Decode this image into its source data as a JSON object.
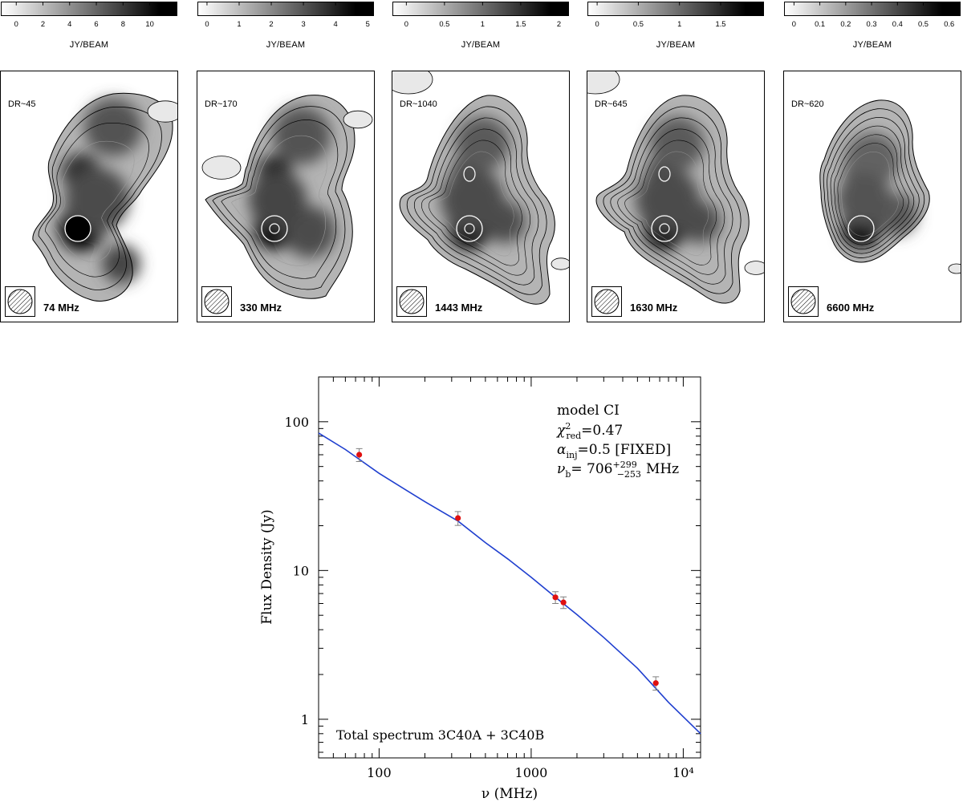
{
  "colors": {
    "fit": "#1f3fcf",
    "points": "#e01010",
    "errorbar": "#808080"
  },
  "panels": [
    {
      "freq": "74 MHz",
      "dr": "DR~45",
      "cbar_label": "JY/BEAM",
      "ticks": [
        "0",
        "2",
        "4",
        "6",
        "8",
        "10"
      ],
      "tick_values": [
        0,
        2,
        4,
        6,
        8,
        10
      ],
      "vmin": -0.8,
      "vmax": 11.6,
      "max_value": 11.5
    },
    {
      "freq": "330 MHz",
      "dr": "DR~170",
      "cbar_label": "JY/BEAM",
      "ticks": [
        "0",
        "1",
        "2",
        "3",
        "4",
        "5"
      ],
      "tick_values": [
        0,
        1,
        2,
        3,
        4,
        5
      ],
      "vmin": -0.15,
      "vmax": 5.0,
      "max_value": 5.0
    },
    {
      "freq": "1443 MHz",
      "dr": "DR~1040",
      "cbar_label": "JY/BEAM",
      "ticks": [
        "0",
        "0.5",
        "1",
        "1.5",
        "2"
      ],
      "tick_values": [
        0,
        0.5,
        1,
        1.5,
        2
      ],
      "vmin": -0.12,
      "vmax": 2.05,
      "max_value": 2.0
    },
    {
      "freq": "1630 MHz",
      "dr": "DR~645",
      "cbar_label": "JY/BEAM",
      "ticks": [
        "0",
        "0.5",
        "1",
        "1.5"
      ],
      "tick_values": [
        0,
        0.5,
        1,
        1.5
      ],
      "vmin": -0.06,
      "vmax": 1.95,
      "max_value": 1.9
    },
    {
      "freq": "6600 MHz",
      "dr": "DR~620",
      "cbar_label": "JY/BEAM",
      "ticks": [
        "0",
        "0.1",
        "0.2",
        "0.3",
        "0.4",
        "0.5",
        "0.6"
      ],
      "tick_values": [
        0,
        0.1,
        0.2,
        0.3,
        0.4,
        0.5,
        0.6
      ],
      "vmin": -0.02,
      "vmax": 0.62,
      "max_value": 0.6
    }
  ],
  "chart_data": {
    "type": "scatter",
    "title": "Total spectrum 3C40A + 3C40B",
    "xlabel": "ν (MHz)",
    "ylabel": "Flux Density (Jy)",
    "xscale": "log",
    "yscale": "log",
    "xlim": [
      40,
      13000
    ],
    "ylim": [
      0.55,
      200
    ],
    "x_ticks": [
      "100",
      "1000",
      "10⁴"
    ],
    "x_tick_values": [
      100,
      1000,
      10000
    ],
    "y_ticks": [
      "1",
      "10",
      "100"
    ],
    "y_tick_values": [
      1,
      10,
      100
    ],
    "annotations": [
      "model CI",
      "χ²red=0.47",
      "αinj=0.5 [FIXED]",
      "νb= 706 +299 −253 MHz"
    ],
    "model": {
      "name": "model CI",
      "chi2_red": "0.47",
      "alpha_inj": "0.5 [FIXED]",
      "nu_break": "706",
      "nu_break_plus": "+299",
      "nu_break_minus": "−253",
      "unit": "MHz"
    },
    "series": [
      {
        "name": "measured",
        "x": [
          74,
          330,
          1443,
          1630,
          6600
        ],
        "y": [
          60.0,
          22.5,
          6.6,
          6.1,
          1.75
        ],
        "yerr": [
          6.0,
          2.4,
          0.6,
          0.55,
          0.18
        ]
      },
      {
        "name": "fit",
        "x": [
          40,
          60,
          100,
          200,
          330,
          500,
          706,
          1000,
          1500,
          2000,
          3000,
          5000,
          8000,
          13000
        ],
        "y": [
          84.0,
          65.0,
          45.0,
          29.0,
          21.5,
          15.4,
          11.9,
          9.0,
          6.4,
          5.05,
          3.55,
          2.2,
          1.3,
          0.8
        ]
      }
    ]
  }
}
